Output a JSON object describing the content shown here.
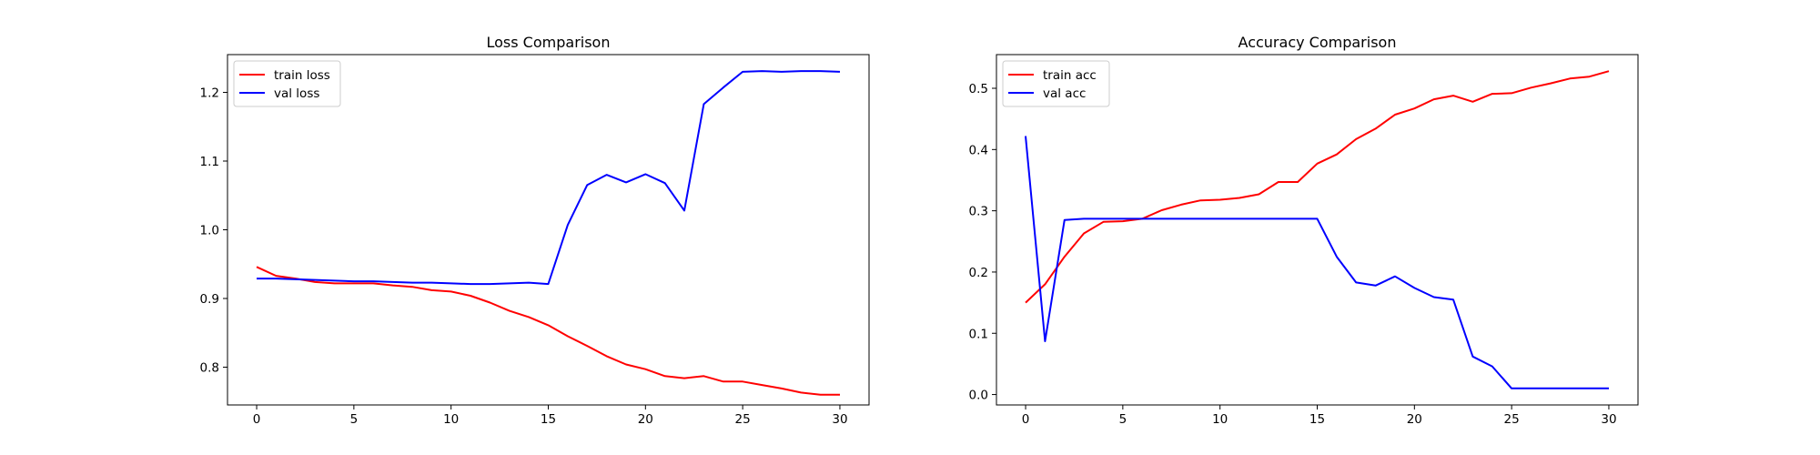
{
  "colors": {
    "train": "#ff0000",
    "val": "#0000ff",
    "axes": "#000000",
    "legend_border": "#cccccc"
  },
  "chart_data": [
    {
      "type": "line",
      "title": "Loss Comparison",
      "xlabel": "",
      "ylabel": "",
      "xlim": [
        -1.5,
        31.5
      ],
      "ylim": [
        0.745,
        1.255
      ],
      "xticks": [
        0,
        5,
        10,
        15,
        20,
        25,
        30
      ],
      "yticks": [
        0.8,
        0.9,
        1.0,
        1.1,
        1.2
      ],
      "ytick_labels": [
        "0.8",
        "0.9",
        "1.0",
        "1.1",
        "1.2"
      ],
      "grid": false,
      "legend": "upper-left",
      "x": [
        0,
        1,
        2,
        3,
        4,
        5,
        6,
        7,
        8,
        9,
        10,
        11,
        12,
        13,
        14,
        15,
        16,
        17,
        18,
        19,
        20,
        21,
        22,
        23,
        24,
        25,
        26,
        27,
        28,
        29,
        30
      ],
      "series": [
        {
          "name": "train loss",
          "color": "#ff0000",
          "values": [
            0.946,
            0.933,
            0.929,
            0.924,
            0.922,
            0.922,
            0.922,
            0.919,
            0.917,
            0.912,
            0.91,
            0.904,
            0.894,
            0.882,
            0.873,
            0.861,
            0.845,
            0.831,
            0.816,
            0.804,
            0.797,
            0.787,
            0.784,
            0.787,
            0.779,
            0.779,
            0.774,
            0.769,
            0.763,
            0.76,
            0.76
          ]
        },
        {
          "name": "val loss",
          "color": "#0000ff",
          "values": [
            0.929,
            0.929,
            0.928,
            0.927,
            0.926,
            0.925,
            0.925,
            0.924,
            0.923,
            0.923,
            0.922,
            0.921,
            0.921,
            0.922,
            0.923,
            0.921,
            1.007,
            1.065,
            1.08,
            1.069,
            1.081,
            1.068,
            1.028,
            1.183,
            1.207,
            1.23,
            1.231,
            1.23,
            1.231,
            1.231,
            1.23
          ]
        }
      ]
    },
    {
      "type": "line",
      "title": "Accuracy Comparison",
      "xlabel": "",
      "ylabel": "",
      "xlim": [
        -1.5,
        31.5
      ],
      "ylim": [
        -0.017,
        0.555
      ],
      "xticks": [
        0,
        5,
        10,
        15,
        20,
        25,
        30
      ],
      "yticks": [
        0.0,
        0.1,
        0.2,
        0.3,
        0.4,
        0.5
      ],
      "ytick_labels": [
        "0.0",
        "0.1",
        "0.2",
        "0.3",
        "0.4",
        "0.5"
      ],
      "grid": false,
      "legend": "upper-left",
      "x": [
        0,
        1,
        2,
        3,
        4,
        5,
        6,
        7,
        8,
        9,
        10,
        11,
        12,
        13,
        14,
        15,
        16,
        17,
        18,
        19,
        20,
        21,
        22,
        23,
        24,
        25,
        26,
        27,
        28,
        29,
        30
      ],
      "series": [
        {
          "name": "train acc",
          "color": "#ff0000",
          "values": [
            0.15,
            0.18,
            0.225,
            0.263,
            0.282,
            0.283,
            0.287,
            0.301,
            0.31,
            0.317,
            0.318,
            0.321,
            0.327,
            0.347,
            0.347,
            0.377,
            0.392,
            0.417,
            0.434,
            0.457,
            0.467,
            0.482,
            0.488,
            0.478,
            0.491,
            0.492,
            0.501,
            0.508,
            0.516,
            0.519,
            0.528
          ]
        },
        {
          "name": "val acc",
          "color": "#0000ff",
          "values": [
            0.422,
            0.087,
            0.285,
            0.287,
            0.287,
            0.287,
            0.287,
            0.287,
            0.287,
            0.287,
            0.287,
            0.287,
            0.287,
            0.287,
            0.287,
            0.287,
            0.225,
            0.183,
            0.178,
            0.193,
            0.174,
            0.159,
            0.155,
            0.062,
            0.046,
            0.01,
            0.01,
            0.01,
            0.01,
            0.01,
            0.01
          ]
        }
      ]
    }
  ]
}
